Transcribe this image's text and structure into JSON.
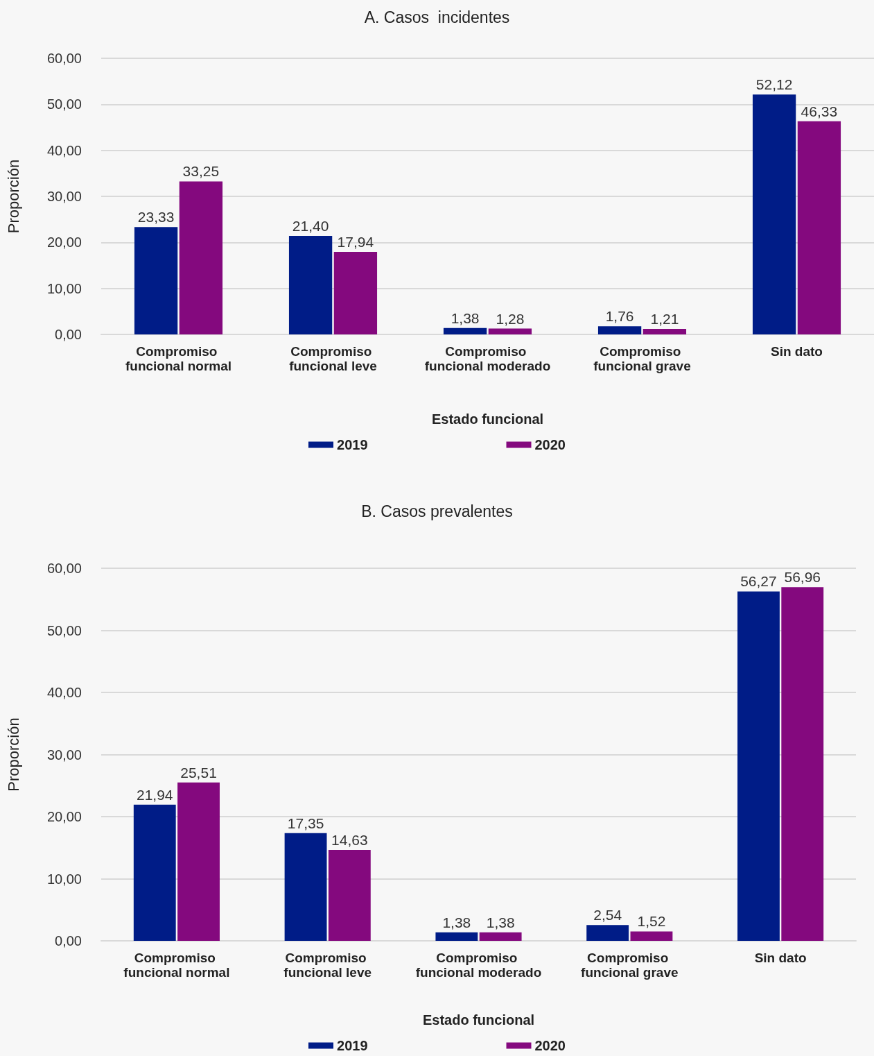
{
  "chart_data": [
    {
      "type": "bar",
      "title": "A. Casos  incidentes",
      "xlabel": "Estado funcional",
      "ylabel": "Proporción",
      "categories": [
        "Compromiso funcional normal",
        "Compromiso funcional leve",
        "Compromiso funcional moderado",
        "Compromiso funcional grave",
        "Sin dato"
      ],
      "series": [
        {
          "name": "2019",
          "color": "#001c87",
          "values": [
            23.33,
            21.4,
            1.38,
            1.76,
            52.12
          ],
          "value_labels": [
            "23,33",
            "21,40",
            "1,38",
            "1,76",
            "52,12"
          ]
        },
        {
          "name": "2020",
          "color": "#84097e",
          "values": [
            33.25,
            17.94,
            1.28,
            1.21,
            46.33
          ],
          "value_labels": [
            "33,25",
            "17,94",
            "1,28",
            "1,21",
            "46,33"
          ]
        }
      ],
      "ylim": [
        0,
        60
      ],
      "yticks": [
        {
          "value": 0,
          "label": "0,00"
        },
        {
          "value": 10,
          "label": "10,00"
        },
        {
          "value": 20,
          "label": "20,00"
        },
        {
          "value": 30,
          "label": "30,00"
        },
        {
          "value": 40,
          "label": "40,00"
        },
        {
          "value": 50,
          "label": "50,00"
        },
        {
          "value": 60,
          "label": "60,00"
        }
      ],
      "grid": "y",
      "legend": "bottom"
    },
    {
      "type": "bar",
      "title": "B. Casos prevalentes",
      "xlabel": "Estado funcional",
      "ylabel": "Proporción",
      "categories": [
        "Compromiso funcional normal",
        "Compromiso funcional leve",
        "Compromiso funcional moderado",
        "Compromiso funcional grave",
        "Sin dato"
      ],
      "series": [
        {
          "name": "2019",
          "color": "#001c87",
          "values": [
            21.94,
            17.35,
            1.38,
            2.54,
            56.27
          ],
          "value_labels": [
            "21,94",
            "17,35",
            "1,38",
            "2,54",
            "56,27"
          ]
        },
        {
          "name": "2020",
          "color": "#84097e",
          "values": [
            25.51,
            14.63,
            1.38,
            1.52,
            56.96
          ],
          "value_labels": [
            "25,51",
            "14,63",
            "1,38",
            "1,52",
            "56,96"
          ]
        }
      ],
      "ylim": [
        0,
        60
      ],
      "yticks": [
        {
          "value": 0,
          "label": "0,00"
        },
        {
          "value": 10,
          "label": "10,00"
        },
        {
          "value": 20,
          "label": "20,00"
        },
        {
          "value": 30,
          "label": "30,00"
        },
        {
          "value": 40,
          "label": "40,00"
        },
        {
          "value": 50,
          "label": "50,00"
        },
        {
          "value": 60,
          "label": "60,00"
        }
      ],
      "grid": "y",
      "legend": "bottom"
    }
  ]
}
